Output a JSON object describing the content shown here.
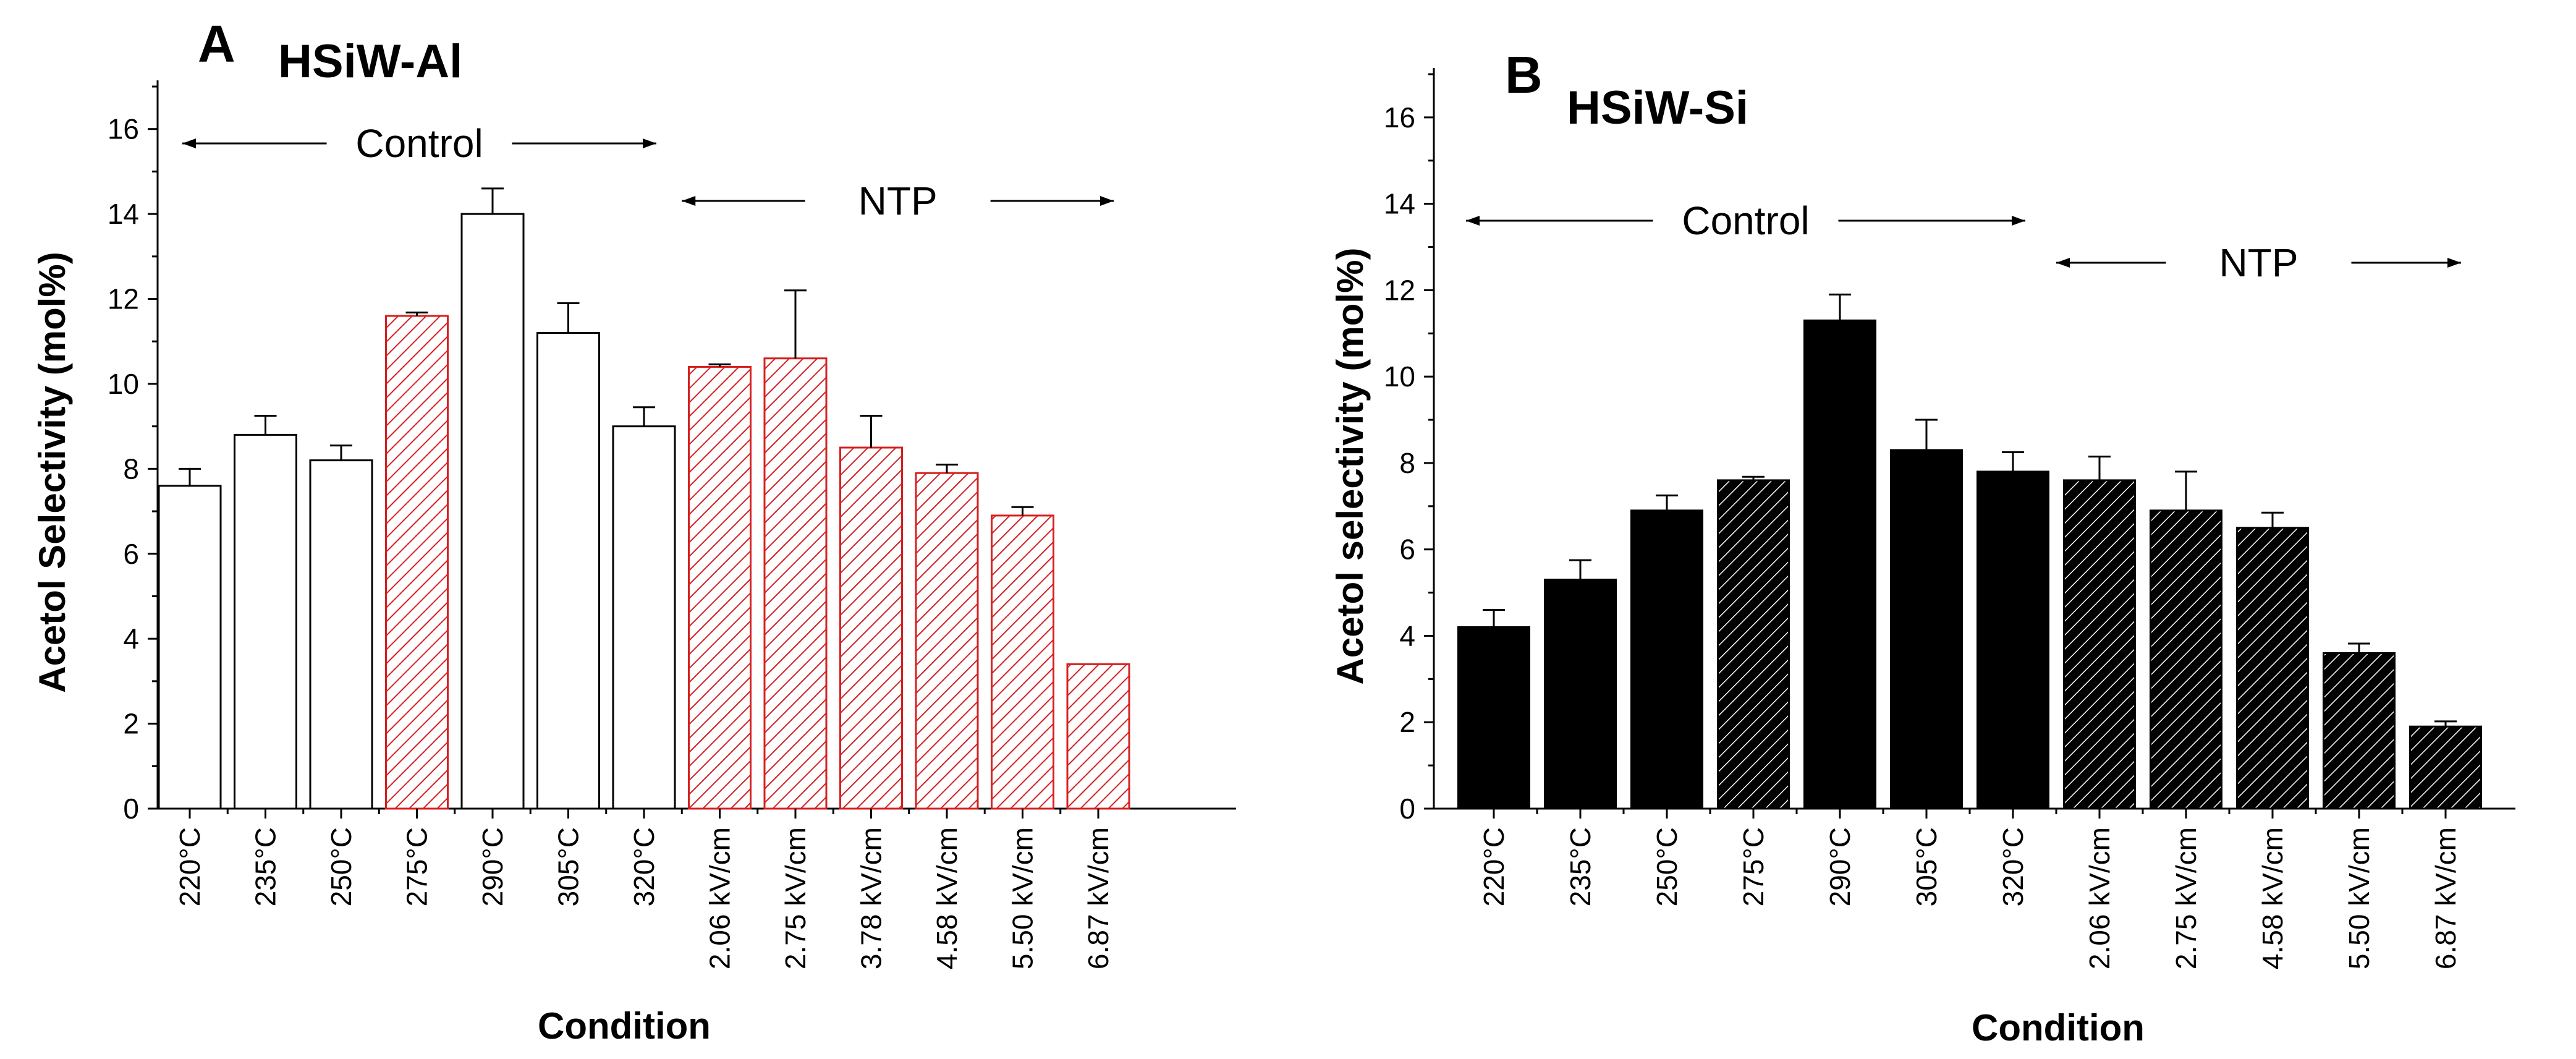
{
  "chart_data": [
    {
      "type": "bar",
      "panel_label": "A",
      "title": "HSiW-Al",
      "xlabel": "Condition",
      "ylabel": "Acetol Selectivity (mol%)",
      "ylim": [
        0,
        17
      ],
      "yticks": [
        0,
        2,
        4,
        6,
        8,
        10,
        12,
        14,
        16
      ],
      "categories": [
        "220°C",
        "235°C",
        "250°C",
        "275°C",
        "290°C",
        "305°C",
        "320°C",
        "2.06 kV/cm",
        "2.75 kV/cm",
        "3.78 kV/cm",
        "4.58 kV/cm",
        "5.50 kV/cm",
        "6.87 kV/cm"
      ],
      "values": [
        7.6,
        8.8,
        8.2,
        11.6,
        14.0,
        11.2,
        9.0,
        10.4,
        10.6,
        8.5,
        7.9,
        6.9,
        3.4
      ],
      "errors": [
        0.4,
        0.45,
        0.35,
        0.08,
        0.6,
        0.7,
        0.45,
        0.06,
        1.6,
        0.75,
        0.2,
        0.2,
        0.0
      ],
      "styles": [
        "plain",
        "plain",
        "plain",
        "hatched",
        "plain",
        "plain",
        "plain",
        "hatched",
        "hatched",
        "hatched",
        "hatched",
        "hatched",
        "hatched"
      ],
      "colors": {
        "plain_fill": "#ffffff",
        "plain_stroke": "#000000",
        "hatch_color": "#d62020",
        "hatch_stroke": "#d62020"
      },
      "groups": [
        {
          "label": "Control",
          "from": 0,
          "to": 6
        },
        {
          "label": "NTP",
          "from": 7,
          "to": 12
        }
      ]
    },
    {
      "type": "bar",
      "panel_label": "B",
      "title": "HSiW-Si",
      "xlabel": "Condition",
      "ylabel": "Acetol selectivity (mol%)",
      "ylim": [
        0,
        17
      ],
      "yticks": [
        0,
        2,
        4,
        6,
        8,
        10,
        12,
        14,
        16
      ],
      "categories": [
        "220°C",
        "235°C",
        "250°C",
        "275°C",
        "290°C",
        "305°C",
        "320°C",
        "2.06 kV/cm",
        "2.75 kV/cm",
        "4.58 kV/cm",
        "5.50 kV/cm",
        "6.87 kV/cm"
      ],
      "values": [
        4.2,
        5.3,
        6.9,
        7.6,
        11.3,
        8.3,
        7.8,
        7.6,
        6.9,
        6.5,
        3.6,
        1.9
      ],
      "errors": [
        0.4,
        0.45,
        0.35,
        0.08,
        0.6,
        0.7,
        0.45,
        0.55,
        0.9,
        0.35,
        0.22,
        0.12
      ],
      "styles": [
        "plain",
        "plain",
        "plain",
        "hatched",
        "plain",
        "plain",
        "plain",
        "hatched",
        "hatched",
        "hatched",
        "hatched",
        "hatched"
      ],
      "colors": {
        "plain_fill": "#000000",
        "plain_stroke": "#000000",
        "hatch_color": "#ffffff",
        "hatch_stroke": "#000000"
      },
      "groups": [
        {
          "label": "Control",
          "from": 0,
          "to": 6
        },
        {
          "label": "NTP",
          "from": 7,
          "to": 11
        }
      ]
    }
  ]
}
